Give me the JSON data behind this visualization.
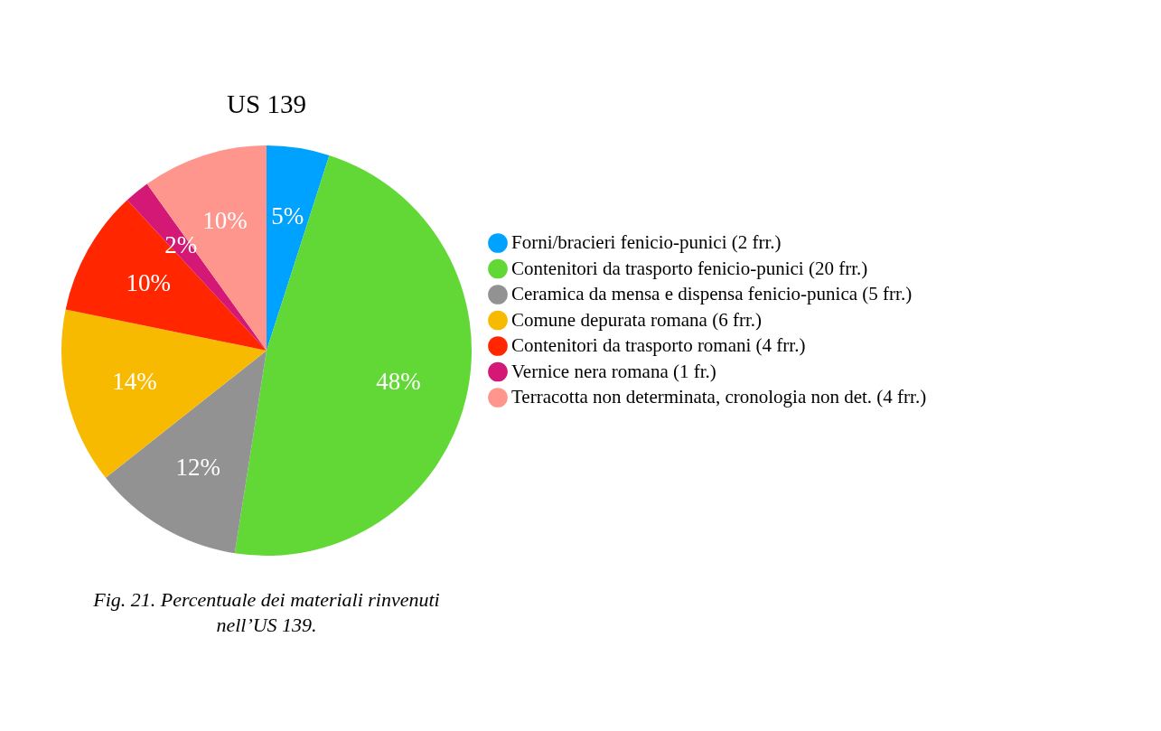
{
  "chart_data": {
    "type": "pie",
    "title": "US 139",
    "categories": [
      "Forni/bracieri fenicio-punici (2 frr.)",
      "Contenitori da trasporto fenicio-punici  (20 frr.)",
      "Ceramica da mensa e dispensa fenicio-punica (5 frr.)",
      "Comune depurata romana (6 frr.)",
      "Contenitori da trasporto romani (4 frr.)",
      "Vernice nera romana (1 fr.)",
      "Terracotta non determinata, cronologia non det. (4 frr.)"
    ],
    "values": [
      5,
      48,
      12,
      14,
      10,
      2,
      10
    ],
    "colors": [
      "#00a2ff",
      "#61d836",
      "#929292",
      "#f8ba00",
      "#ff2600",
      "#d31876",
      "#ff968d"
    ],
    "value_labels": [
      "5%",
      "48%",
      "12%",
      "14%",
      "10%",
      "2%",
      "10%"
    ],
    "legend": "right",
    "annotations": [
      "Fig. 21. Percentuale dei materiali rinvenuti nell’US 139."
    ]
  }
}
